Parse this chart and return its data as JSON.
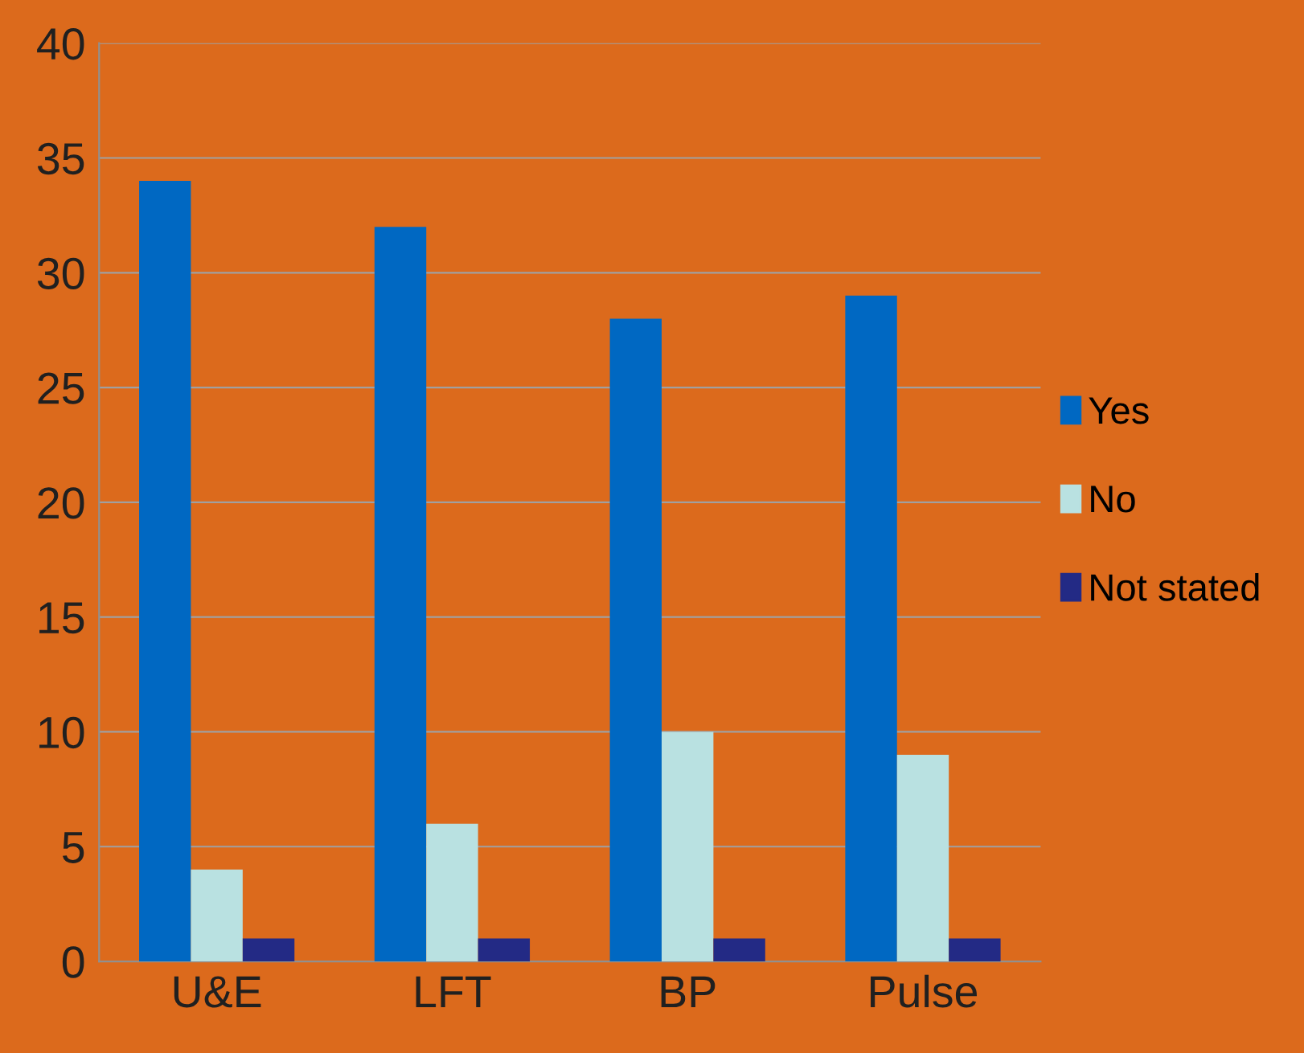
{
  "chart_data": {
    "type": "bar",
    "categories": [
      "U&E",
      "LFT",
      "BP",
      "Pulse"
    ],
    "series": [
      {
        "name": "Yes",
        "color": "#0068c2",
        "values": [
          34,
          32,
          28,
          29
        ]
      },
      {
        "name": "No",
        "color": "#b9e1e1",
        "values": [
          4,
          6,
          10,
          9
        ]
      },
      {
        "name": "Not stated",
        "color": "#232a85",
        "values": [
          1,
          1,
          1,
          1
        ]
      }
    ],
    "ylim": [
      0,
      40
    ],
    "yticks": [
      0,
      5,
      10,
      15,
      20,
      25,
      30,
      35,
      40
    ],
    "grid": "y",
    "legend": "right"
  }
}
